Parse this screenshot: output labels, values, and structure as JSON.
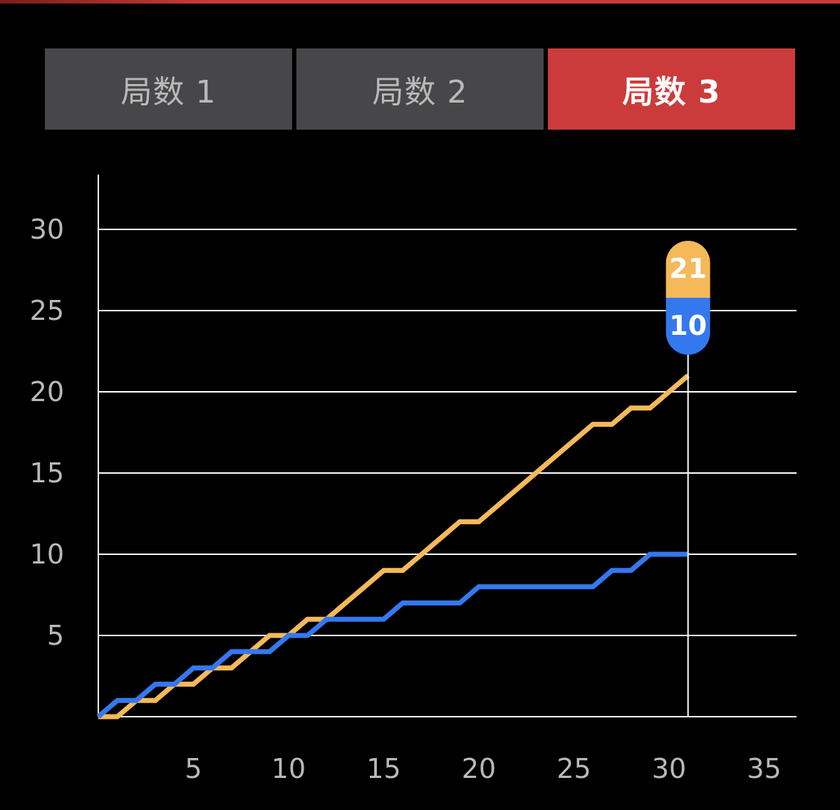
{
  "tabs": [
    {
      "label": "局数 1",
      "active": false
    },
    {
      "label": "局数 2",
      "active": false
    },
    {
      "label": "局数 3",
      "active": true
    }
  ],
  "colors": {
    "accent": "#cc3b3b",
    "tab_bg": "#474749",
    "series_orange": "#f5b95a",
    "series_blue": "#3478f0",
    "grid": "#ffffff",
    "tick_text": "#b9b9b9"
  },
  "chart_data": {
    "type": "line",
    "line_shape": "step",
    "xlabel": "",
    "ylabel": "",
    "xlim": [
      0,
      36
    ],
    "ylim": [
      0,
      33
    ],
    "x_ticks": [
      5,
      10,
      15,
      20,
      25,
      30,
      35
    ],
    "y_ticks": [
      5,
      10,
      15,
      20,
      25,
      30
    ],
    "grid": true,
    "series": [
      {
        "key": "orange",
        "color": "#f5b95a",
        "x": [
          0,
          1,
          2,
          3,
          4,
          5,
          6,
          7,
          8,
          9,
          10,
          11,
          12,
          13,
          14,
          15,
          16,
          17,
          18,
          19,
          20,
          21,
          22,
          23,
          24,
          25,
          26,
          27,
          28,
          29,
          30,
          31
        ],
        "y": [
          0,
          0,
          1,
          1,
          2,
          2,
          3,
          3,
          4,
          5,
          5,
          6,
          6,
          7,
          8,
          9,
          9,
          10,
          11,
          12,
          12,
          13,
          14,
          15,
          16,
          17,
          18,
          18,
          19,
          19,
          20,
          21
        ]
      },
      {
        "key": "blue",
        "color": "#3478f0",
        "x": [
          0,
          1,
          2,
          3,
          4,
          5,
          6,
          7,
          8,
          9,
          10,
          11,
          12,
          13,
          14,
          15,
          16,
          17,
          18,
          19,
          20,
          21,
          22,
          23,
          24,
          25,
          26,
          27,
          28,
          29,
          30,
          31
        ],
        "y": [
          0,
          1,
          1,
          2,
          2,
          3,
          3,
          4,
          4,
          4,
          5,
          5,
          6,
          6,
          6,
          6,
          7,
          7,
          7,
          7,
          8,
          8,
          8,
          8,
          8,
          8,
          8,
          9,
          9,
          10,
          10,
          10
        ]
      }
    ],
    "cursor": {
      "x": 31,
      "labels": [
        {
          "text": "21",
          "color": "#f5b95a"
        },
        {
          "text": "10",
          "color": "#3478f0"
        }
      ]
    }
  }
}
